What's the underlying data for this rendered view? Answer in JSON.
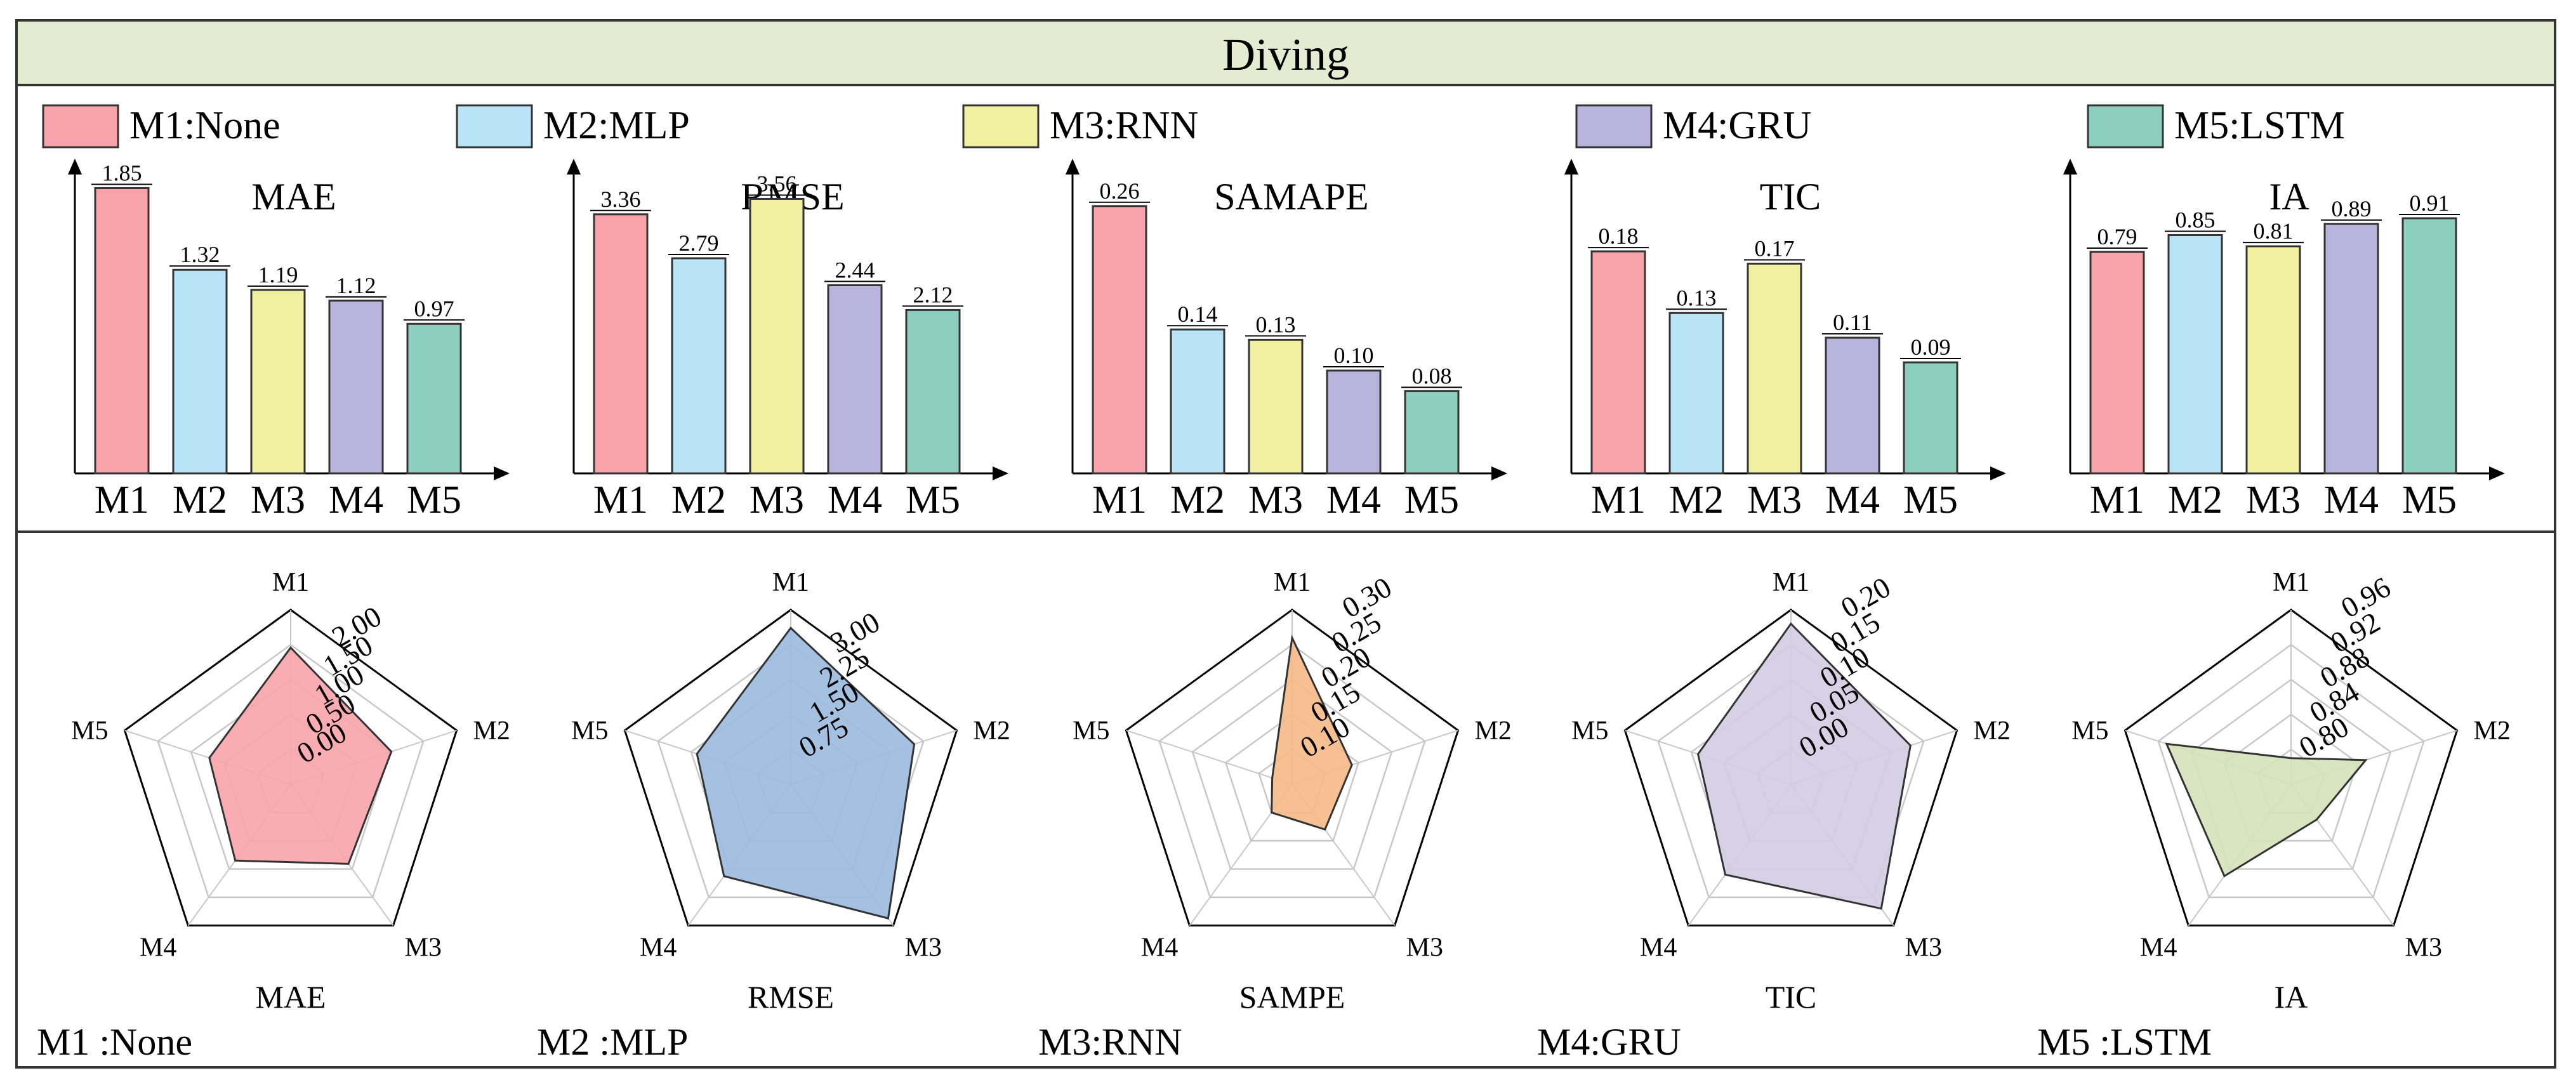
{
  "title": "Diving",
  "colors": {
    "M1": "#f8a3aa",
    "M2": "#b9e4f8",
    "M3": "#f0f0a0",
    "M4": "#b9b4db",
    "M5": "#8ccfbf",
    "header_bg": "#e3ebd0"
  },
  "legend": [
    {
      "key": "M1",
      "label": "M1:None"
    },
    {
      "key": "M2",
      "label": "M2:MLP"
    },
    {
      "key": "M3",
      "label": "M3:RNN"
    },
    {
      "key": "M4",
      "label": "M4:GRU"
    },
    {
      "key": "M5",
      "label": "M5:LSTM"
    }
  ],
  "chart_data": [
    {
      "type": "bar",
      "title": "MAE",
      "categories": [
        "M1",
        "M2",
        "M3",
        "M4",
        "M5"
      ],
      "values": [
        1.85,
        1.32,
        1.19,
        1.12,
        0.97
      ],
      "value_labels": [
        "1.85",
        "1.32",
        "1.19",
        "1.12",
        "0.97"
      ],
      "ylim": [
        0,
        2.0
      ]
    },
    {
      "type": "bar",
      "title": "RMSE",
      "categories": [
        "M1",
        "M2",
        "M3",
        "M4",
        "M5"
      ],
      "values": [
        3.36,
        2.79,
        3.56,
        2.44,
        2.12
      ],
      "value_labels": [
        "3.36",
        "2.79",
        "3.56",
        "2.44",
        "2.12"
      ],
      "ylim": [
        0,
        4.0
      ]
    },
    {
      "type": "bar",
      "title": "SAMAPE",
      "categories": [
        "M1",
        "M2",
        "M3",
        "M4",
        "M5"
      ],
      "values": [
        0.26,
        0.14,
        0.13,
        0.1,
        0.08
      ],
      "value_labels": [
        "0.26",
        "0.14",
        "0.13",
        "0.10",
        "0.08"
      ],
      "ylim": [
        0,
        0.3
      ]
    },
    {
      "type": "bar",
      "title": "TIC",
      "categories": [
        "M1",
        "M2",
        "M3",
        "M4",
        "M5"
      ],
      "values": [
        0.18,
        0.13,
        0.17,
        0.11,
        0.09
      ],
      "value_labels": [
        "0.18",
        "0.13",
        "0.17",
        "0.11",
        "0.09"
      ],
      "ylim": [
        0,
        0.25
      ]
    },
    {
      "type": "bar",
      "title": "IA",
      "categories": [
        "M1",
        "M2",
        "M3",
        "M4",
        "M5"
      ],
      "values": [
        0.79,
        0.85,
        0.81,
        0.89,
        0.91
      ],
      "value_labels": [
        "0.79",
        "0.85",
        "0.81",
        "0.89",
        "0.91"
      ],
      "ylim": [
        0,
        1.1
      ]
    },
    {
      "type": "radar",
      "metric": "MAE",
      "caption": "M1 :None",
      "color_key": "M1",
      "fill": "#f8a3aa",
      "axes": [
        "M1",
        "M2",
        "M3",
        "M4",
        "M5"
      ],
      "rmin": -0.5,
      "rmax": 2.5,
      "ticks": [
        "0.00",
        "0.50",
        "1.00",
        "1.50",
        "2.00"
      ],
      "tick_values": [
        0,
        0.5,
        1.0,
        1.5,
        2.0
      ],
      "values": [
        1.85,
        1.32,
        1.19,
        1.12,
        0.97
      ]
    },
    {
      "type": "radar",
      "metric": "RMSE",
      "caption": "M2 :MLP",
      "color_key": "M2",
      "fill": "#9bbadf",
      "axes": [
        "M1",
        "M2",
        "M3",
        "M4",
        "M5"
      ],
      "rmin": 0,
      "rmax": 3.75,
      "ticks": [
        "0.75",
        "1.50",
        "2.25",
        "3.00"
      ],
      "tick_values": [
        0.75,
        1.5,
        2.25,
        3.0
      ],
      "values": [
        3.36,
        2.79,
        3.56,
        2.44,
        2.12
      ]
    },
    {
      "type": "radar",
      "metric": "SAMPE",
      "caption": "M3:RNN",
      "color_key": "M3",
      "fill": "#f6b987",
      "axes": [
        "M1",
        "M2",
        "M3",
        "M4",
        "M5"
      ],
      "rmin": 0.05,
      "rmax": 0.3,
      "ticks": [
        "0.10",
        "0.15",
        "0.20",
        "0.25",
        "0.30"
      ],
      "tick_values": [
        0.1,
        0.15,
        0.2,
        0.25,
        0.3
      ],
      "values": [
        0.26,
        0.14,
        0.13,
        0.1,
        0.08
      ]
    },
    {
      "type": "radar",
      "metric": "TIC",
      "caption": "M4:GRU",
      "color_key": "M4",
      "fill": "#d3cce2",
      "axes": [
        "M1",
        "M2",
        "M3",
        "M4",
        "M5"
      ],
      "rmin": -0.05,
      "rmax": 0.2,
      "ticks": [
        "0.00",
        "0.05",
        "0.10",
        "0.15",
        "0.20"
      ],
      "tick_values": [
        0,
        0.05,
        0.1,
        0.15,
        0.2
      ],
      "values": [
        0.18,
        0.13,
        0.17,
        0.11,
        0.09
      ]
    },
    {
      "type": "radar",
      "metric": "IA",
      "caption": "M5 :LSTM",
      "color_key": "M5",
      "fill": "#d5e2b9",
      "axes": [
        "M1",
        "M2",
        "M3",
        "M4",
        "M5"
      ],
      "rmin": 0.76,
      "rmax": 0.96,
      "ticks": [
        "0.80",
        "0.84",
        "0.88",
        "0.92",
        "0.96"
      ],
      "tick_values": [
        0.8,
        0.84,
        0.88,
        0.92,
        0.96
      ],
      "values": [
        0.79,
        0.85,
        0.81,
        0.89,
        0.91
      ]
    }
  ]
}
